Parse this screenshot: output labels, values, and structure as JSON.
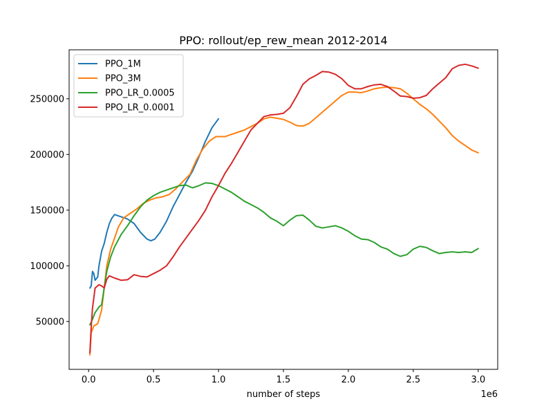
{
  "chart_data": {
    "type": "line",
    "title": "PPO: rollout/ep_rew_mean 2012-2014",
    "xlabel": "number of steps",
    "ylabel": "",
    "x_offset_label": "1e6",
    "xlim": [
      -0.15,
      3.15
    ],
    "ylim": [
      7000,
      294000
    ],
    "x_ticks": [
      0.0,
      0.5,
      1.0,
      1.5,
      2.0,
      2.5,
      3.0
    ],
    "x_tick_labels": [
      "0.0",
      "0.5",
      "1.0",
      "1.5",
      "2.0",
      "2.5",
      "3.0"
    ],
    "y_ticks": [
      50000,
      100000,
      150000,
      200000,
      250000
    ],
    "y_tick_labels": [
      "50000",
      "100000",
      "150000",
      "200000",
      "250000"
    ],
    "grid": false,
    "legend_position": "top-left",
    "series": [
      {
        "name": "PPO_1M",
        "color": "#1f77b4",
        "points": [
          [
            0.01,
            80000
          ],
          [
            0.02,
            82000
          ],
          [
            0.03,
            95000
          ],
          [
            0.04,
            93000
          ],
          [
            0.05,
            87000
          ],
          [
            0.07,
            90000
          ],
          [
            0.08,
            100000
          ],
          [
            0.1,
            113000
          ],
          [
            0.12,
            120000
          ],
          [
            0.14,
            130000
          ],
          [
            0.16,
            138000
          ],
          [
            0.18,
            143000
          ],
          [
            0.2,
            146000
          ],
          [
            0.25,
            144000
          ],
          [
            0.3,
            142000
          ],
          [
            0.35,
            138000
          ],
          [
            0.4,
            130000
          ],
          [
            0.45,
            124000
          ],
          [
            0.48,
            122500
          ],
          [
            0.51,
            124000
          ],
          [
            0.55,
            130000
          ],
          [
            0.6,
            140000
          ],
          [
            0.65,
            153000
          ],
          [
            0.7,
            164000
          ],
          [
            0.75,
            175000
          ],
          [
            0.8,
            185000
          ],
          [
            0.85,
            198000
          ],
          [
            0.9,
            212000
          ],
          [
            0.95,
            224000
          ],
          [
            1.0,
            232000
          ]
        ]
      },
      {
        "name": "PPO_3M",
        "color": "#ff7f0e",
        "points": [
          [
            0.01,
            20000
          ],
          [
            0.02,
            40000
          ],
          [
            0.04,
            46000
          ],
          [
            0.07,
            48000
          ],
          [
            0.1,
            60000
          ],
          [
            0.12,
            80000
          ],
          [
            0.14,
            100000
          ],
          [
            0.17,
            115000
          ],
          [
            0.2,
            125000
          ],
          [
            0.23,
            135000
          ],
          [
            0.27,
            143000
          ],
          [
            0.32,
            147000
          ],
          [
            0.37,
            151000
          ],
          [
            0.42,
            156000
          ],
          [
            0.47,
            159000
          ],
          [
            0.52,
            161000
          ],
          [
            0.57,
            162000
          ],
          [
            0.62,
            164000
          ],
          [
            0.67,
            169000
          ],
          [
            0.72,
            175000
          ],
          [
            0.78,
            182000
          ],
          [
            0.83,
            195000
          ],
          [
            0.88,
            205000
          ],
          [
            0.93,
            212000
          ],
          [
            0.98,
            216000
          ],
          [
            1.05,
            216000
          ],
          [
            1.1,
            218000
          ],
          [
            1.15,
            220000
          ],
          [
            1.2,
            222000
          ],
          [
            1.25,
            225000
          ],
          [
            1.3,
            228000
          ],
          [
            1.35,
            232000
          ],
          [
            1.4,
            233500
          ],
          [
            1.45,
            232500
          ],
          [
            1.5,
            231500
          ],
          [
            1.55,
            229000
          ],
          [
            1.6,
            226000
          ],
          [
            1.65,
            225500
          ],
          [
            1.7,
            228000
          ],
          [
            1.75,
            233000
          ],
          [
            1.8,
            238000
          ],
          [
            1.85,
            243000
          ],
          [
            1.9,
            248000
          ],
          [
            1.95,
            253000
          ],
          [
            2.0,
            256000
          ],
          [
            2.05,
            256000
          ],
          [
            2.1,
            255500
          ],
          [
            2.15,
            257000
          ],
          [
            2.2,
            259000
          ],
          [
            2.25,
            260000
          ],
          [
            2.3,
            260500
          ],
          [
            2.35,
            260000
          ],
          [
            2.4,
            259000
          ],
          [
            2.45,
            255000
          ],
          [
            2.5,
            250000
          ],
          [
            2.55,
            245000
          ],
          [
            2.6,
            241000
          ],
          [
            2.65,
            236000
          ],
          [
            2.7,
            230000
          ],
          [
            2.75,
            224000
          ],
          [
            2.8,
            217000
          ],
          [
            2.85,
            212000
          ],
          [
            2.9,
            208000
          ],
          [
            2.95,
            204000
          ],
          [
            3.0,
            201500
          ]
        ]
      },
      {
        "name": "PPO_LR_0.0005",
        "color": "#2ca02c",
        "points": [
          [
            0.01,
            47000
          ],
          [
            0.03,
            52000
          ],
          [
            0.05,
            58000
          ],
          [
            0.08,
            63000
          ],
          [
            0.1,
            65000
          ],
          [
            0.12,
            80000
          ],
          [
            0.14,
            95000
          ],
          [
            0.17,
            108000
          ],
          [
            0.2,
            117000
          ],
          [
            0.25,
            128000
          ],
          [
            0.3,
            136000
          ],
          [
            0.35,
            145000
          ],
          [
            0.4,
            153000
          ],
          [
            0.45,
            159000
          ],
          [
            0.5,
            163000
          ],
          [
            0.55,
            166000
          ],
          [
            0.6,
            168000
          ],
          [
            0.65,
            170000
          ],
          [
            0.7,
            172000
          ],
          [
            0.75,
            172500
          ],
          [
            0.8,
            170000
          ],
          [
            0.85,
            172000
          ],
          [
            0.9,
            174500
          ],
          [
            0.95,
            174000
          ],
          [
            1.0,
            172000
          ],
          [
            1.05,
            169000
          ],
          [
            1.1,
            166000
          ],
          [
            1.15,
            162000
          ],
          [
            1.2,
            158000
          ],
          [
            1.25,
            155000
          ],
          [
            1.3,
            152000
          ],
          [
            1.35,
            148000
          ],
          [
            1.4,
            143000
          ],
          [
            1.45,
            140000
          ],
          [
            1.5,
            136000
          ],
          [
            1.55,
            141000
          ],
          [
            1.6,
            145000
          ],
          [
            1.65,
            145500
          ],
          [
            1.7,
            141000
          ],
          [
            1.75,
            135500
          ],
          [
            1.8,
            134000
          ],
          [
            1.85,
            135000
          ],
          [
            1.9,
            136000
          ],
          [
            1.95,
            134000
          ],
          [
            2.0,
            131000
          ],
          [
            2.05,
            127000
          ],
          [
            2.1,
            124000
          ],
          [
            2.15,
            123500
          ],
          [
            2.2,
            121000
          ],
          [
            2.25,
            117000
          ],
          [
            2.3,
            115000
          ],
          [
            2.35,
            111000
          ],
          [
            2.4,
            108500
          ],
          [
            2.45,
            110000
          ],
          [
            2.5,
            115000
          ],
          [
            2.55,
            117500
          ],
          [
            2.6,
            116500
          ],
          [
            2.65,
            113500
          ],
          [
            2.7,
            111000
          ],
          [
            2.75,
            112000
          ],
          [
            2.8,
            112500
          ],
          [
            2.85,
            112000
          ],
          [
            2.9,
            112500
          ],
          [
            2.95,
            112000
          ],
          [
            3.0,
            115500
          ]
        ]
      },
      {
        "name": "PPO_LR_0.0001",
        "color": "#d62728",
        "points": [
          [
            0.01,
            22000
          ],
          [
            0.02,
            45000
          ],
          [
            0.03,
            62000
          ],
          [
            0.05,
            80000
          ],
          [
            0.08,
            83000
          ],
          [
            0.1,
            82000
          ],
          [
            0.12,
            80000
          ],
          [
            0.14,
            88000
          ],
          [
            0.16,
            91000
          ],
          [
            0.2,
            89000
          ],
          [
            0.25,
            87000
          ],
          [
            0.3,
            87500
          ],
          [
            0.35,
            92000
          ],
          [
            0.4,
            90500
          ],
          [
            0.45,
            90000
          ],
          [
            0.5,
            93000
          ],
          [
            0.55,
            96000
          ],
          [
            0.6,
            100000
          ],
          [
            0.65,
            108000
          ],
          [
            0.7,
            117000
          ],
          [
            0.75,
            125000
          ],
          [
            0.8,
            133000
          ],
          [
            0.85,
            141000
          ],
          [
            0.9,
            150000
          ],
          [
            0.95,
            162000
          ],
          [
            1.0,
            172000
          ],
          [
            1.05,
            183000
          ],
          [
            1.1,
            192000
          ],
          [
            1.15,
            202000
          ],
          [
            1.2,
            212000
          ],
          [
            1.25,
            222000
          ],
          [
            1.3,
            228000
          ],
          [
            1.35,
            234000
          ],
          [
            1.4,
            235500
          ],
          [
            1.45,
            236000
          ],
          [
            1.5,
            237000
          ],
          [
            1.55,
            242000
          ],
          [
            1.6,
            252000
          ],
          [
            1.65,
            263000
          ],
          [
            1.7,
            268000
          ],
          [
            1.75,
            271000
          ],
          [
            1.8,
            274500
          ],
          [
            1.85,
            274000
          ],
          [
            1.9,
            272000
          ],
          [
            1.95,
            268000
          ],
          [
            2.0,
            262000
          ],
          [
            2.05,
            259000
          ],
          [
            2.1,
            259000
          ],
          [
            2.15,
            261000
          ],
          [
            2.2,
            262500
          ],
          [
            2.25,
            263000
          ],
          [
            2.3,
            261000
          ],
          [
            2.35,
            257000
          ],
          [
            2.4,
            252500
          ],
          [
            2.45,
            252000
          ],
          [
            2.5,
            250500
          ],
          [
            2.55,
            251000
          ],
          [
            2.6,
            253000
          ],
          [
            2.65,
            259000
          ],
          [
            2.7,
            264000
          ],
          [
            2.75,
            269000
          ],
          [
            2.8,
            277000
          ],
          [
            2.85,
            280000
          ],
          [
            2.9,
            281000
          ],
          [
            2.95,
            279500
          ],
          [
            3.0,
            277500
          ]
        ]
      }
    ]
  }
}
